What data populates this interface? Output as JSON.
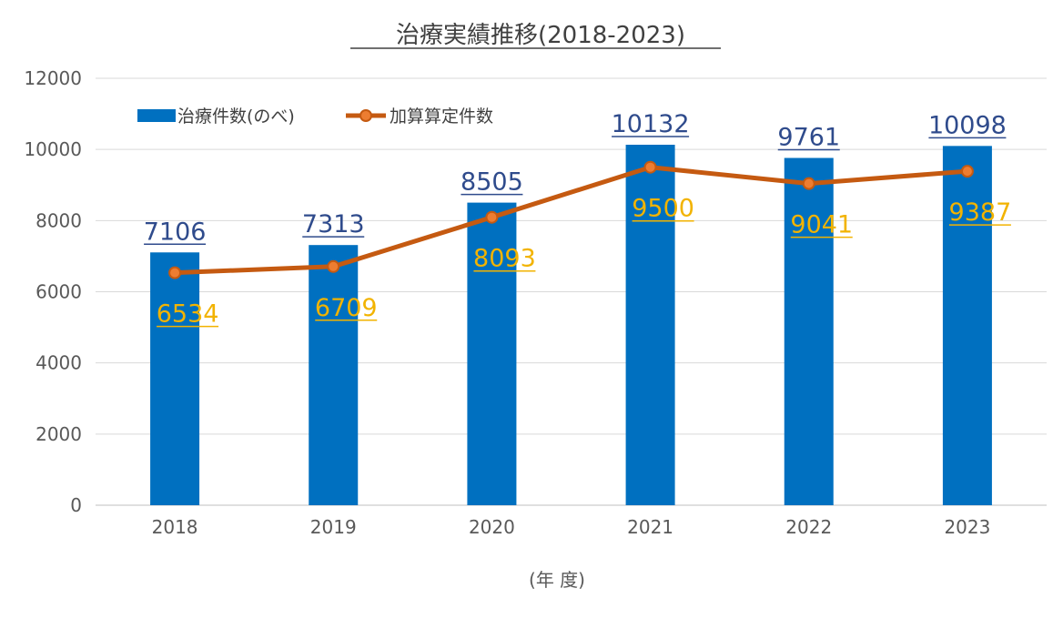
{
  "chart_data": {
    "type": "bar",
    "title": "治療実績推移(2018-2023)",
    "xlabel": "(年 度)",
    "ylabel": "",
    "ylim": [
      0,
      12000
    ],
    "yticks": [
      0,
      2000,
      4000,
      6000,
      8000,
      10000,
      12000
    ],
    "categories": [
      "2018",
      "2019",
      "2020",
      "2021",
      "2022",
      "2023"
    ],
    "series": [
      {
        "name": "治療件数(のべ)",
        "type": "bar",
        "color": "#0070C0",
        "label_color": "#2F4B8C",
        "values": [
          7106,
          7313,
          8505,
          10132,
          9761,
          10098
        ]
      },
      {
        "name": "加算算定件数",
        "type": "line",
        "color": "#C55A11",
        "marker_color": "#ED7D31",
        "label_color": "#F2B300",
        "values": [
          6534,
          6709,
          8093,
          9500,
          9041,
          9387
        ]
      }
    ],
    "grid": true,
    "legend_position": "top-left"
  }
}
